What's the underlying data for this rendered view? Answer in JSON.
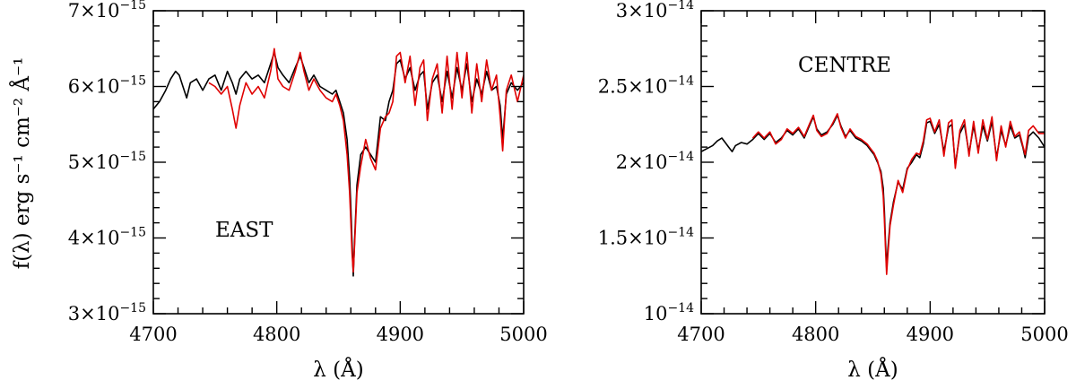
{
  "figure": {
    "ylabel": "f(λ)  erg s⁻¹ cm⁻² Å⁻¹"
  },
  "chart_data": [
    {
      "type": "line",
      "panel_label": "EAST",
      "xlabel": "λ (Å)",
      "xlim": [
        4700,
        5000
      ],
      "ylim": [
        3e-15,
        7e-15
      ],
      "x_ticks": [
        4700,
        4800,
        4900,
        5000
      ],
      "x_tick_labels": [
        "4700",
        "4800",
        "4900",
        "5000"
      ],
      "y_ticks": [
        3e-15,
        4e-15,
        5e-15,
        6e-15,
        7e-15
      ],
      "y_tick_labels": [
        {
          "mantissa": "3×10",
          "exp": "−15"
        },
        {
          "mantissa": "4×10",
          "exp": "−15"
        },
        {
          "mantissa": "5×10",
          "exp": "−15"
        },
        {
          "mantissa": "6×10",
          "exp": "−15"
        },
        {
          "mantissa": "7×10",
          "exp": "−15"
        }
      ],
      "grid": false,
      "legend": "none",
      "series": [
        {
          "color": "#000000",
          "x": [
            4700,
            4705,
            4710,
            4714,
            4718,
            4721,
            4724,
            4727,
            4730,
            4735,
            4740,
            4745,
            4750,
            4755,
            4760,
            4764,
            4767,
            4770,
            4775,
            4780,
            4785,
            4790,
            4795,
            4798,
            4801,
            4805,
            4810,
            4815,
            4819,
            4822,
            4826,
            4830,
            4835,
            4840,
            4845,
            4848,
            4851,
            4854,
            4857,
            4859,
            4860,
            4861,
            4862,
            4863,
            4865,
            4868,
            4872,
            4876,
            4880,
            4884,
            4888,
            4891,
            4894,
            4897,
            4900,
            4904,
            4908,
            4912,
            4916,
            4919,
            4922,
            4926,
            4930,
            4934,
            4938,
            4942,
            4946,
            4950,
            4954,
            4958,
            4962,
            4966,
            4970,
            4974,
            4978,
            4981,
            4983,
            4986,
            4990,
            4995,
            5000
          ],
          "y": [
            5.7e-15,
            5.8e-15,
            5.95e-15,
            6.1e-15,
            6.2e-15,
            6.15e-15,
            6e-15,
            5.85e-15,
            6.05e-15,
            6.1e-15,
            5.95e-15,
            6.1e-15,
            6.15e-15,
            5.95e-15,
            6.2e-15,
            6.05e-15,
            5.9e-15,
            6.1e-15,
            6.2e-15,
            6.1e-15,
            6.15e-15,
            6.05e-15,
            6.3e-15,
            6.45e-15,
            6.25e-15,
            6.15e-15,
            6.05e-15,
            6.25e-15,
            6.4e-15,
            6.25e-15,
            6.05e-15,
            6.15e-15,
            6e-15,
            5.95e-15,
            5.9e-15,
            5.95e-15,
            5.8e-15,
            5.65e-15,
            5.3e-15,
            4.8e-15,
            4.4e-15,
            3.95e-15,
            3.5e-15,
            3.95e-15,
            4.7e-15,
            5.1e-15,
            5.2e-15,
            5.1e-15,
            5e-15,
            5.6e-15,
            5.55e-15,
            5.8e-15,
            5.95e-15,
            6.3e-15,
            6.35e-15,
            6.1e-15,
            6.25e-15,
            5.95e-15,
            6.15e-15,
            6.2e-15,
            5.7e-15,
            6.05e-15,
            6.15e-15,
            5.8e-15,
            6.2e-15,
            5.85e-15,
            6.25e-15,
            5.95e-15,
            6.3e-15,
            5.8e-15,
            6.1e-15,
            5.9e-15,
            6.2e-15,
            5.95e-15,
            6e-15,
            5.75e-15,
            5.3e-15,
            5.9e-15,
            6.05e-15,
            5.95e-15,
            6.05e-15
          ]
        },
        {
          "color": "#e00000",
          "x": [
            4745,
            4750,
            4755,
            4760,
            4764,
            4767,
            4770,
            4775,
            4780,
            4785,
            4790,
            4795,
            4798,
            4801,
            4805,
            4810,
            4815,
            4819,
            4822,
            4826,
            4830,
            4835,
            4840,
            4845,
            4848,
            4851,
            4854,
            4857,
            4859,
            4860,
            4861,
            4862,
            4863,
            4865,
            4868,
            4872,
            4876,
            4880,
            4884,
            4888,
            4891,
            4894,
            4897,
            4900,
            4904,
            4908,
            4912,
            4916,
            4919,
            4922,
            4926,
            4930,
            4934,
            4938,
            4942,
            4946,
            4950,
            4954,
            4958,
            4962,
            4966,
            4970,
            4974,
            4978,
            4981,
            4983,
            4986,
            4990,
            4995,
            5000
          ],
          "y": [
            6.05e-15,
            6e-15,
            5.9e-15,
            6e-15,
            5.7e-15,
            5.45e-15,
            5.75e-15,
            6.05e-15,
            5.9e-15,
            6e-15,
            5.85e-15,
            6.2e-15,
            6.5e-15,
            6.1e-15,
            6e-15,
            5.95e-15,
            6.2e-15,
            6.45e-15,
            6.2e-15,
            5.95e-15,
            6.1e-15,
            5.95e-15,
            5.85e-15,
            5.8e-15,
            5.9e-15,
            5.75e-15,
            5.55e-15,
            5.1e-15,
            4.6e-15,
            4.2e-15,
            3.8e-15,
            3.55e-15,
            3.9e-15,
            4.6e-15,
            4.95e-15,
            5.3e-15,
            5.05e-15,
            4.9e-15,
            5.45e-15,
            5.6e-15,
            5.65e-15,
            5.8e-15,
            6.4e-15,
            6.45e-15,
            6.05e-15,
            6.4e-15,
            5.75e-15,
            6.25e-15,
            6.35e-15,
            5.55e-15,
            6.1e-15,
            6.3e-15,
            5.65e-15,
            6.4e-15,
            5.7e-15,
            6.45e-15,
            5.85e-15,
            6.45e-15,
            5.65e-15,
            6.3e-15,
            5.8e-15,
            6.35e-15,
            5.95e-15,
            6.15e-15,
            5.6e-15,
            5.15e-15,
            5.95e-15,
            6.15e-15,
            5.8e-15,
            6.15e-15
          ]
        }
      ]
    },
    {
      "type": "line",
      "panel_label": "CENTRE",
      "xlabel": "λ (Å)",
      "xlim": [
        4700,
        5000
      ],
      "ylim": [
        1e-14,
        3e-14
      ],
      "x_ticks": [
        4700,
        4800,
        4900,
        5000
      ],
      "x_tick_labels": [
        "4700",
        "4800",
        "4900",
        "5000"
      ],
      "y_ticks": [
        1e-14,
        1.5e-14,
        2e-14,
        2.5e-14,
        3e-14
      ],
      "y_tick_labels": [
        {
          "mantissa": "10",
          "exp": "−14"
        },
        {
          "mantissa": "1.5×10",
          "exp": "−14"
        },
        {
          "mantissa": "2×10",
          "exp": "−14"
        },
        {
          "mantissa": "2.5×10",
          "exp": "−14"
        },
        {
          "mantissa": "3×10",
          "exp": "−14"
        }
      ],
      "grid": false,
      "legend": "none",
      "series": [
        {
          "color": "#000000",
          "x": [
            4700,
            4705,
            4710,
            4714,
            4718,
            4721,
            4724,
            4727,
            4730,
            4735,
            4740,
            4745,
            4750,
            4755,
            4760,
            4765,
            4770,
            4775,
            4780,
            4785,
            4790,
            4795,
            4798,
            4801,
            4805,
            4810,
            4815,
            4819,
            4822,
            4826,
            4830,
            4835,
            4840,
            4845,
            4848,
            4851,
            4854,
            4857,
            4859,
            4860,
            4861,
            4862,
            4863,
            4865,
            4868,
            4872,
            4876,
            4880,
            4884,
            4888,
            4891,
            4894,
            4897,
            4900,
            4904,
            4908,
            4912,
            4916,
            4919,
            4922,
            4926,
            4930,
            4934,
            4938,
            4942,
            4946,
            4950,
            4954,
            4958,
            4962,
            4966,
            4970,
            4974,
            4978,
            4981,
            4983,
            4986,
            4990,
            4995,
            5000
          ],
          "y": [
            2.07e-14,
            2.09e-14,
            2.11e-14,
            2.14e-14,
            2.16e-14,
            2.13e-14,
            2.1e-14,
            2.07e-14,
            2.11e-14,
            2.13e-14,
            2.12e-14,
            2.15e-14,
            2.19e-14,
            2.15e-14,
            2.19e-14,
            2.13e-14,
            2.16e-14,
            2.21e-14,
            2.18e-14,
            2.22e-14,
            2.16e-14,
            2.25e-14,
            2.3e-14,
            2.22e-14,
            2.18e-14,
            2.2e-14,
            2.25e-14,
            2.31e-14,
            2.24e-14,
            2.17e-14,
            2.21e-14,
            2.16e-14,
            2.14e-14,
            2.11e-14,
            2.08e-14,
            2.05e-14,
            2e-14,
            1.94e-14,
            1.83e-14,
            1.68e-14,
            1.48e-14,
            1.3e-14,
            1.42e-14,
            1.6e-14,
            1.74e-14,
            1.87e-14,
            1.82e-14,
            1.96e-14,
            2e-14,
            2.05e-14,
            2.03e-14,
            2.12e-14,
            2.26e-14,
            2.27e-14,
            2.19e-14,
            2.25e-14,
            2.07e-14,
            2.23e-14,
            2.25e-14,
            1.98e-14,
            2.19e-14,
            2.25e-14,
            2.06e-14,
            2.24e-14,
            2.08e-14,
            2.24e-14,
            2.14e-14,
            2.27e-14,
            2.03e-14,
            2.21e-14,
            2.11e-14,
            2.24e-14,
            2.16e-14,
            2.18e-14,
            2.1e-14,
            2.03e-14,
            2.17e-14,
            2.2e-14,
            2.16e-14,
            2.1e-14
          ]
        },
        {
          "color": "#e00000",
          "x": [
            4745,
            4750,
            4755,
            4760,
            4765,
            4770,
            4775,
            4780,
            4785,
            4790,
            4795,
            4798,
            4801,
            4805,
            4810,
            4815,
            4819,
            4822,
            4826,
            4830,
            4835,
            4840,
            4845,
            4848,
            4851,
            4854,
            4857,
            4859,
            4860,
            4861,
            4862,
            4863,
            4865,
            4868,
            4872,
            4876,
            4880,
            4884,
            4888,
            4891,
            4894,
            4897,
            4900,
            4904,
            4908,
            4912,
            4916,
            4919,
            4922,
            4926,
            4930,
            4934,
            4938,
            4942,
            4946,
            4950,
            4954,
            4958,
            4962,
            4966,
            4970,
            4974,
            4978,
            4981,
            4983,
            4986,
            4990,
            4995,
            5000
          ],
          "y": [
            2.16e-14,
            2.2e-14,
            2.16e-14,
            2.2e-14,
            2.12e-14,
            2.15e-14,
            2.22e-14,
            2.19e-14,
            2.23e-14,
            2.17e-14,
            2.26e-14,
            2.31e-14,
            2.21e-14,
            2.17e-14,
            2.19e-14,
            2.26e-14,
            2.32e-14,
            2.23e-14,
            2.16e-14,
            2.22e-14,
            2.17e-14,
            2.15e-14,
            2.12e-14,
            2.09e-14,
            2.06e-14,
            2.01e-14,
            1.92e-14,
            1.78e-14,
            1.62e-14,
            1.44e-14,
            1.26e-14,
            1.38e-14,
            1.58e-14,
            1.72e-14,
            1.88e-14,
            1.8e-14,
            1.95e-14,
            2.02e-14,
            2.06e-14,
            2.05e-14,
            2.14e-14,
            2.28e-14,
            2.29e-14,
            2.2e-14,
            2.28e-14,
            2.04e-14,
            2.26e-14,
            2.28e-14,
            1.96e-14,
            2.21e-14,
            2.28e-14,
            2.04e-14,
            2.27e-14,
            2.06e-14,
            2.28e-14,
            2.15e-14,
            2.3e-14,
            2.01e-14,
            2.24e-14,
            2.1e-14,
            2.27e-14,
            2.17e-14,
            2.2e-14,
            2.11e-14,
            2.05e-14,
            2.21e-14,
            2.24e-14,
            2.19e-14,
            2.19e-14
          ]
        }
      ]
    }
  ]
}
